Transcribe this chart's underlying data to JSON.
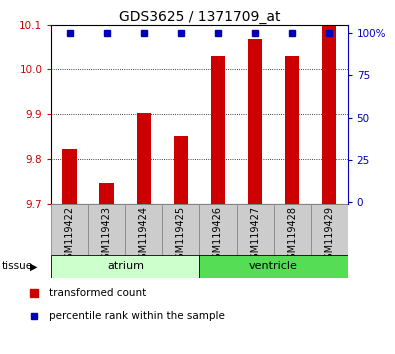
{
  "title": "GDS3625 / 1371709_at",
  "samples": [
    "GSM119422",
    "GSM119423",
    "GSM119424",
    "GSM119425",
    "GSM119426",
    "GSM119427",
    "GSM119428",
    "GSM119429"
  ],
  "red_values": [
    9.822,
    9.745,
    9.902,
    9.852,
    10.03,
    10.068,
    10.03,
    10.098
  ],
  "blue_values": [
    100,
    100,
    100,
    100,
    100,
    100,
    100,
    100
  ],
  "groups": [
    {
      "label": "atrium",
      "start": 0,
      "end": 4,
      "color": "#ccffcc"
    },
    {
      "label": "ventricle",
      "start": 4,
      "end": 8,
      "color": "#55dd55"
    }
  ],
  "ylim": [
    9.7,
    10.1
  ],
  "yticks": [
    9.7,
    9.8,
    9.9,
    10.0,
    10.1
  ],
  "y2ticks": [
    0,
    25,
    50,
    75,
    100
  ],
  "y2labels": [
    "0",
    "25",
    "50",
    "75",
    "100%"
  ],
  "bar_color": "#cc0000",
  "dot_color": "#0000bb",
  "bg_color": "#ffffff",
  "tick_color_left": "#cc0000",
  "tick_color_right": "#0000bb",
  "legend_items": [
    "transformed count",
    "percentile rank within the sample"
  ],
  "tissue_label": "tissue",
  "bar_width": 0.4,
  "label_box_color": "#cccccc",
  "label_box_edge": "#888888"
}
